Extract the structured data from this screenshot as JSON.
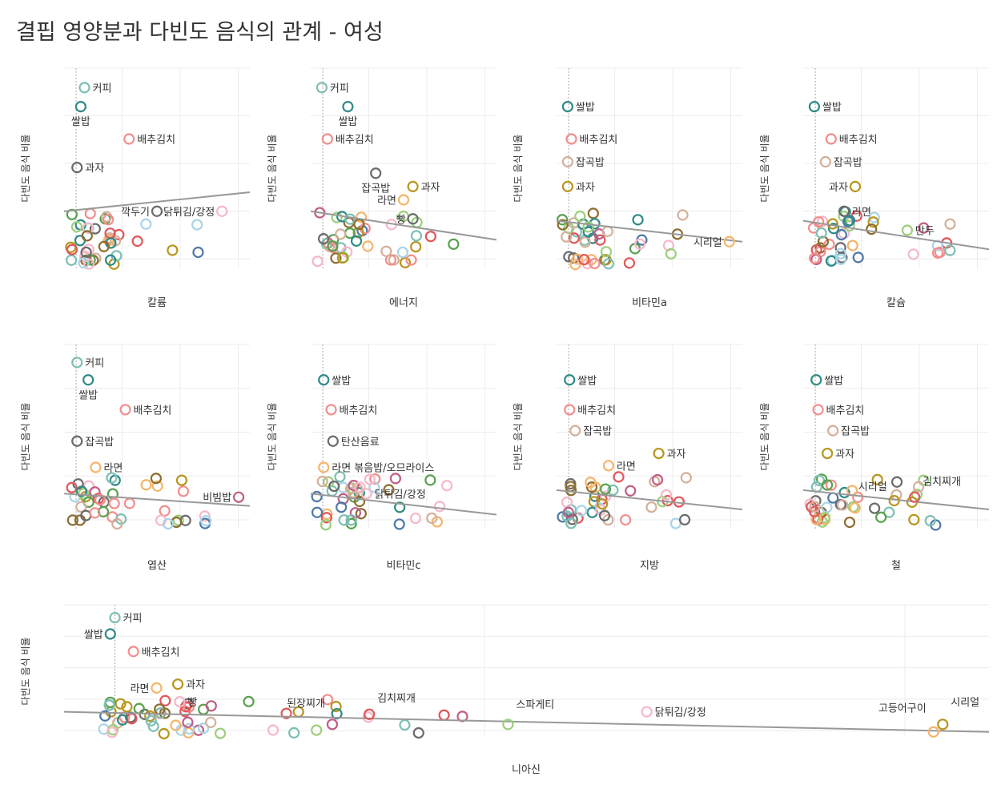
{
  "title": "결핍 영양분과 다빈도 음식의 관계 - 여성",
  "palette": [
    "#7ebfb5",
    "#2e8b86",
    "#f28e8e",
    "#d4b09a",
    "#6b6b6b",
    "#b8961e",
    "#f5b56a",
    "#e15759",
    "#c05e88",
    "#a9d4e8",
    "#9ccf7c",
    "#f6b8c8",
    "#4e79a7",
    "#8c6d31",
    "#59a14f"
  ],
  "chart_data": [
    {
      "type": "scatter",
      "xlabel": "칼륨",
      "ylabel": "다빈도 음식 비율",
      "ylim": [
        0,
        100
      ],
      "trend": [
        0.3,
        0.4
      ],
      "grid_cols": 4,
      "labels": [
        {
          "text": "커피",
          "x": 0.11,
          "y": 0.95,
          "c": 0
        },
        {
          "text": "쌀밥",
          "x": 0.09,
          "y": 0.85,
          "c": 1,
          "below": true
        },
        {
          "text": "배추김치",
          "x": 0.35,
          "y": 0.68,
          "c": 2
        },
        {
          "text": "과자",
          "x": 0.07,
          "y": 0.53,
          "c": 4
        },
        {
          "text": "깍두기",
          "x": 0.5,
          "y": 0.3,
          "c": 4,
          "left": true
        },
        {
          "text": "닭튀김/강정",
          "x": 0.85,
          "y": 0.3,
          "c": 11,
          "left": true
        }
      ]
    },
    {
      "type": "scatter",
      "xlabel": "에너지",
      "ylabel": "다빈도 음식 비율",
      "ylim": [
        0,
        100
      ],
      "trend": [
        0.3,
        0.15
      ],
      "labels": [
        {
          "text": "커피",
          "x": 0.06,
          "y": 0.95,
          "c": 0
        },
        {
          "text": "쌀밥",
          "x": 0.2,
          "y": 0.85,
          "c": 1,
          "below": true
        },
        {
          "text": "배추김치",
          "x": 0.09,
          "y": 0.68,
          "c": 2
        },
        {
          "text": "잡곡밥",
          "x": 0.35,
          "y": 0.5,
          "c": 4,
          "below": true
        },
        {
          "text": "과자",
          "x": 0.55,
          "y": 0.43,
          "c": 5
        },
        {
          "text": "라면",
          "x": 0.5,
          "y": 0.36,
          "c": 6,
          "left": true
        },
        {
          "text": "빵",
          "x": 0.55,
          "y": 0.26,
          "c": 4,
          "left": true
        }
      ]
    },
    {
      "type": "scatter",
      "xlabel": "비타민a",
      "ylabel": "다빈도 음식 비율",
      "ylim": [
        0,
        100
      ],
      "trend": [
        0.25,
        0.14
      ],
      "labels": [
        {
          "text": "쌀밥",
          "x": 0.06,
          "y": 0.85,
          "c": 1
        },
        {
          "text": "배추김치",
          "x": 0.08,
          "y": 0.68,
          "c": 2
        },
        {
          "text": "잡곡밥",
          "x": 0.06,
          "y": 0.56,
          "c": 3
        },
        {
          "text": "과자",
          "x": 0.06,
          "y": 0.43,
          "c": 5
        },
        {
          "text": "시리얼",
          "x": 0.93,
          "y": 0.14,
          "c": 6,
          "left": true
        }
      ]
    },
    {
      "type": "scatter",
      "xlabel": "칼슘",
      "ylabel": "다빈도 음식 비율",
      "ylim": [
        0,
        100
      ],
      "trend": [
        0.25,
        0.1
      ],
      "labels": [
        {
          "text": "쌀밥",
          "x": 0.06,
          "y": 0.85,
          "c": 1
        },
        {
          "text": "배추김치",
          "x": 0.15,
          "y": 0.68,
          "c": 2
        },
        {
          "text": "잡곡밥",
          "x": 0.12,
          "y": 0.56,
          "c": 3
        },
        {
          "text": "과자",
          "x": 0.28,
          "y": 0.43,
          "c": 5,
          "left": true
        },
        {
          "text": "라면",
          "x": 0.22,
          "y": 0.3,
          "c": 4
        },
        {
          "text": "만두",
          "x": 0.56,
          "y": 0.2,
          "c": 10
        }
      ]
    },
    {
      "type": "scatter",
      "xlabel": "엽산",
      "ylabel": "다빈도 음식 비율",
      "ylim": [
        0,
        100
      ],
      "trend": [
        0.2,
        0.13
      ],
      "labels": [
        {
          "text": "커피",
          "x": 0.07,
          "y": 0.95,
          "c": 0
        },
        {
          "text": "쌀밥",
          "x": 0.13,
          "y": 0.85,
          "c": 1,
          "below": true
        },
        {
          "text": "배추김치",
          "x": 0.33,
          "y": 0.68,
          "c": 2
        },
        {
          "text": "잡곡밥",
          "x": 0.07,
          "y": 0.5,
          "c": 4
        },
        {
          "text": "라면",
          "x": 0.17,
          "y": 0.35,
          "c": 6
        },
        {
          "text": "비빔밥",
          "x": 0.94,
          "y": 0.18,
          "c": 8,
          "left": true
        }
      ]
    },
    {
      "type": "scatter",
      "xlabel": "비타민c",
      "ylabel": "다빈도 음식 비율",
      "ylim": [
        0,
        100
      ],
      "trend": [
        0.2,
        0.08
      ],
      "labels": [
        {
          "text": "쌀밥",
          "x": 0.07,
          "y": 0.85,
          "c": 1
        },
        {
          "text": "배추김치",
          "x": 0.11,
          "y": 0.68,
          "c": 2
        },
        {
          "text": "탄산음료",
          "x": 0.12,
          "y": 0.5,
          "c": 4
        },
        {
          "text": "라면 볶음밥/오므라이스",
          "x": 0.07,
          "y": 0.35,
          "c": 6
        },
        {
          "text": "닭튀김/강정",
          "x": 0.3,
          "y": 0.2,
          "c": 11
        }
      ]
    },
    {
      "type": "scatter",
      "xlabel": "지방",
      "ylabel": "다빈도 음식 비율",
      "ylim": [
        0,
        100
      ],
      "trend": [
        0.22,
        0.11
      ],
      "labels": [
        {
          "text": "쌀밥",
          "x": 0.07,
          "y": 0.85,
          "c": 1
        },
        {
          "text": "배추김치",
          "x": 0.07,
          "y": 0.68,
          "c": 2
        },
        {
          "text": "잡곡밥",
          "x": 0.1,
          "y": 0.56,
          "c": 3
        },
        {
          "text": "과자",
          "x": 0.55,
          "y": 0.43,
          "c": 5
        },
        {
          "text": "라면",
          "x": 0.28,
          "y": 0.36,
          "c": 6
        }
      ]
    },
    {
      "type": "scatter",
      "xlabel": "철",
      "ylabel": "다빈도 음식 비율",
      "ylim": [
        0,
        100
      ],
      "trend": [
        0.22,
        0.11
      ],
      "labels": [
        {
          "text": "쌀밥",
          "x": 0.07,
          "y": 0.85,
          "c": 1
        },
        {
          "text": "배추김치",
          "x": 0.08,
          "y": 0.68,
          "c": 2
        },
        {
          "text": "잡곡밥",
          "x": 0.16,
          "y": 0.56,
          "c": 3
        },
        {
          "text": "과자",
          "x": 0.13,
          "y": 0.43,
          "c": 5
        },
        {
          "text": "시리얼",
          "x": 0.49,
          "y": 0.16,
          "c": 5,
          "left": true,
          "ly": 0.22
        },
        {
          "text": "김치찌개",
          "x": 0.6,
          "y": 0.18,
          "c": 7,
          "ly": 0.25
        }
      ]
    },
    {
      "type": "scatter",
      "xlabel": "니아신",
      "ylabel": "다빈도 음식 비율",
      "ylim": [
        0,
        100
      ],
      "trend": [
        0.2,
        0.04
      ],
      "wide": true,
      "labels": [
        {
          "text": "커피",
          "x": 0.055,
          "y": 0.95,
          "c": 0
        },
        {
          "text": "쌀밥",
          "x": 0.05,
          "y": 0.82,
          "c": 1,
          "left": true
        },
        {
          "text": "배추김치",
          "x": 0.075,
          "y": 0.68,
          "c": 2
        },
        {
          "text": "과자",
          "x": 0.123,
          "y": 0.42,
          "c": 5
        },
        {
          "text": "라면",
          "x": 0.1,
          "y": 0.39,
          "c": 6,
          "left": true
        },
        {
          "text": "빵",
          "x": 0.125,
          "y": 0.28,
          "c": 11
        },
        {
          "text": "된장찌개",
          "x": 0.29,
          "y": 0.1,
          "c": 8,
          "left": true,
          "ly": 0.24
        },
        {
          "text": "김치찌개",
          "x": 0.33,
          "y": 0.18,
          "c": 7,
          "ly": 0.28
        },
        {
          "text": "스파게티",
          "x": 0.48,
          "y": 0.1,
          "c": 10,
          "ly": 0.23
        },
        {
          "text": "닭튀김/강정",
          "x": 0.63,
          "y": 0.2,
          "c": 11
        },
        {
          "text": "고등어구이",
          "x": 0.94,
          "y": 0.04,
          "c": 6,
          "left": true,
          "ly": 0.2
        },
        {
          "text": "시리얼",
          "x": 0.95,
          "y": 0.1,
          "c": 5,
          "ly": 0.25
        }
      ]
    }
  ]
}
